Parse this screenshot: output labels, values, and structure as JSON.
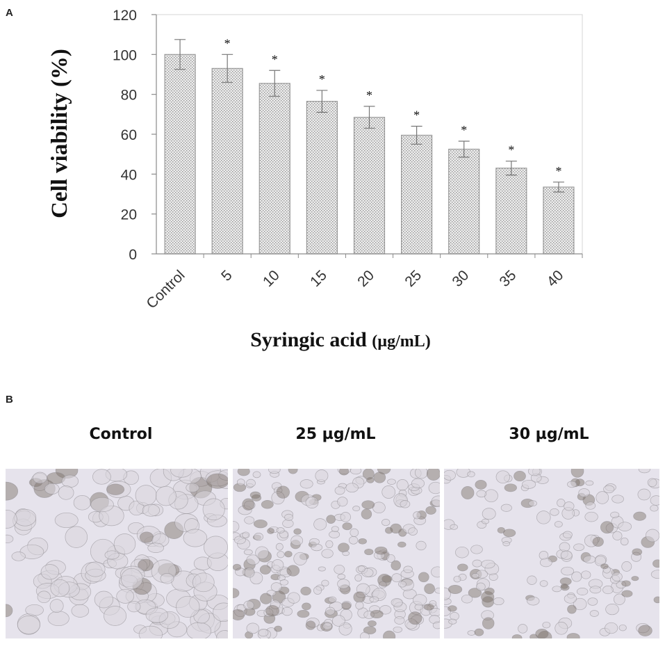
{
  "panels": {
    "a": "A",
    "b": "B"
  },
  "chart_data": {
    "type": "bar",
    "ylabel": "Cell viability (%)",
    "xlabel": "Syringic acid",
    "xlabel_unit": "(µg/mL)",
    "ylim": [
      0,
      120
    ],
    "yticks": [
      "0",
      "20",
      "40",
      "60",
      "80",
      "100",
      "120"
    ],
    "categories": [
      "Control",
      "5",
      "10",
      "15",
      "20",
      "25",
      "30",
      "35",
      "40"
    ],
    "values": [
      100,
      93,
      85.5,
      76.5,
      68.5,
      59.5,
      52.5,
      43,
      33.5
    ],
    "errors": [
      7.5,
      7,
      6.5,
      5.5,
      5.5,
      4.5,
      4,
      3.5,
      2.5
    ],
    "significance": [
      "",
      "*",
      "*",
      "*",
      "*",
      "*",
      "*",
      "*",
      "*"
    ],
    "grid": false,
    "legend": "none",
    "bar_fill": "#dcdcdc",
    "bar_edge": "#9a9a9a"
  },
  "images": [
    {
      "title": "Control"
    },
    {
      "title": "25 µg/mL"
    },
    {
      "title": "30 µg/mL"
    }
  ],
  "colors": {
    "micro_bg": "#e6e3ec",
    "cell_edge": "#8d8a8f",
    "cell_fill": "#d9d5dc",
    "cell_dark": "#7a6f66"
  }
}
